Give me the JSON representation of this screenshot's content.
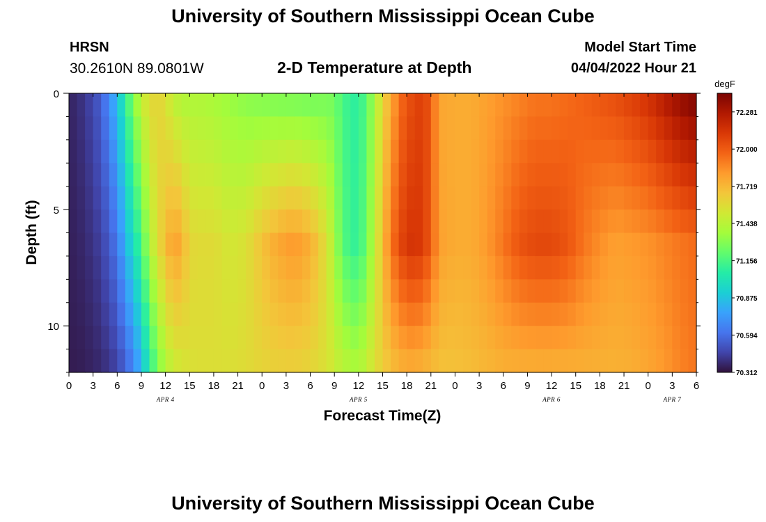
{
  "header": {
    "title": "University of Southern Mississippi Ocean Cube",
    "station": "HRSN",
    "coords": "30.2610N  89.0801W",
    "plot_title": "2-D Temperature at Depth",
    "model_label": "Model Start Time",
    "model_time": "04/04/2022 Hour 21"
  },
  "footer": {
    "title": "University of Southern Mississippi Ocean Cube"
  },
  "chart_data": {
    "type": "heatmap",
    "xlabel": "Forecast Time(Z)",
    "ylabel": "Depth (ft)",
    "x_range_hours": [
      0,
      78
    ],
    "y_range_ft": [
      0,
      12
    ],
    "x_tick_labels": [
      "0",
      "3",
      "6",
      "9",
      "12",
      "15",
      "18",
      "21",
      "0",
      "3",
      "6",
      "9",
      "12",
      "15",
      "18",
      "21",
      "0",
      "3",
      "6",
      "9",
      "12",
      "15",
      "18",
      "21",
      "0",
      "3",
      "6"
    ],
    "date_labels": [
      {
        "label": "APR 4",
        "hour": 12
      },
      {
        "label": "APR 5",
        "hour": 36
      },
      {
        "label": "APR 6",
        "hour": 60
      },
      {
        "label": "APR 7",
        "hour": 75
      }
    ],
    "y_tick_labels": [
      {
        "label": "0",
        "value": 0
      },
      {
        "label": "5",
        "value": 5
      },
      {
        "label": "10",
        "value": 10
      }
    ],
    "colorbar": {
      "unit": "degF",
      "min": 70.312,
      "max": 72.422,
      "tick_labels": [
        "72.281",
        "72.000",
        "71.719",
        "71.438",
        "71.156",
        "70.875",
        "70.594",
        "70.312"
      ],
      "colors": [
        "#30123b",
        "#4145ab",
        "#4675ed",
        "#39a2fc",
        "#1bcfd4",
        "#24eca6",
        "#61fc6c",
        "#a4fc3b",
        "#d1e834",
        "#f3c63a",
        "#fe9b2d",
        "#f36315",
        "#d93806",
        "#b11901",
        "#7a0402"
      ]
    },
    "depth_levels_ft": [
      0.5,
      1.5,
      2.5,
      3.5,
      4.5,
      5.5,
      6.5,
      7.5,
      8.5,
      9.5,
      10.5,
      11.5
    ],
    "timeseries_degF": {
      "hours": [
        0,
        2,
        4,
        6,
        7,
        8,
        9,
        10,
        11,
        12,
        13,
        14,
        15,
        16,
        18,
        20,
        22,
        24,
        26,
        28,
        30,
        32,
        33,
        34,
        35,
        36,
        37,
        38,
        39,
        40,
        41,
        42,
        43,
        44,
        45,
        46,
        48,
        50,
        52,
        54,
        56,
        58,
        60,
        62,
        64,
        66,
        68,
        70,
        72,
        74,
        76,
        78
      ],
      "surface": [
        70.36,
        70.42,
        70.55,
        70.85,
        71.1,
        71.3,
        71.48,
        71.58,
        71.62,
        71.55,
        71.45,
        71.4,
        71.4,
        71.4,
        71.38,
        71.34,
        71.3,
        71.28,
        71.26,
        71.25,
        71.24,
        71.26,
        71.25,
        71.15,
        71.1,
        71.08,
        71.2,
        71.38,
        71.6,
        71.75,
        71.92,
        72.02,
        72.07,
        72.1,
        72.0,
        71.78,
        71.76,
        71.76,
        71.8,
        71.84,
        71.88,
        71.92,
        71.92,
        71.95,
        71.98,
        72.02,
        72.05,
        72.1,
        72.16,
        72.26,
        72.36,
        72.42
      ],
      "mid": [
        70.35,
        70.38,
        70.45,
        70.62,
        70.82,
        70.98,
        71.15,
        71.4,
        71.56,
        71.7,
        71.8,
        71.75,
        71.6,
        71.58,
        71.58,
        71.52,
        71.55,
        71.68,
        71.77,
        71.82,
        71.75,
        71.56,
        71.38,
        71.2,
        71.12,
        71.1,
        71.25,
        71.45,
        71.7,
        71.9,
        72.05,
        72.12,
        72.15,
        72.1,
        72.0,
        71.8,
        71.76,
        71.76,
        71.82,
        71.92,
        72.02,
        72.06,
        72.06,
        72.02,
        71.92,
        71.85,
        71.8,
        71.82,
        71.84,
        71.88,
        71.92,
        71.95
      ],
      "bottom": [
        70.34,
        70.35,
        70.38,
        70.45,
        70.55,
        70.65,
        70.82,
        71.05,
        71.25,
        71.4,
        71.48,
        71.52,
        71.55,
        71.56,
        71.56,
        71.56,
        71.58,
        71.6,
        71.62,
        71.62,
        71.6,
        71.55,
        71.5,
        71.45,
        71.42,
        71.4,
        71.48,
        71.56,
        71.64,
        71.68,
        71.72,
        71.74,
        71.74,
        71.72,
        71.7,
        71.68,
        71.68,
        71.7,
        71.72,
        71.74,
        71.74,
        71.74,
        71.74,
        71.74,
        71.74,
        71.74,
        71.74,
        71.75,
        71.78,
        71.82,
        71.88,
        71.92
      ]
    }
  }
}
